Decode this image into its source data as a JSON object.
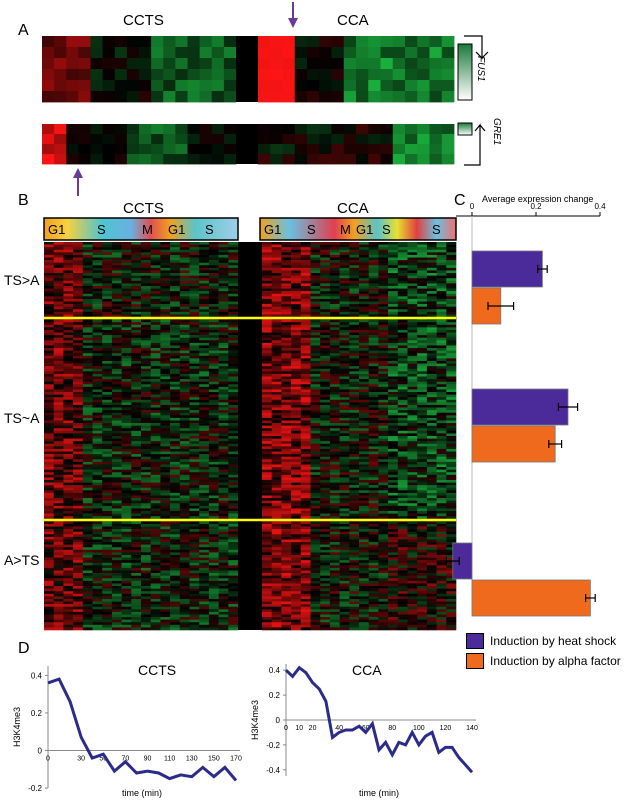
{
  "panels": {
    "a": "A",
    "b": "B",
    "c": "C",
    "d": "D"
  },
  "panel_a": {
    "left_title": "CCTS",
    "right_title": "CCA",
    "genes": [
      "FUS1",
      "GRE1"
    ]
  },
  "panel_b": {
    "left_title": "CCTS",
    "right_title": "CCA",
    "left_phases": [
      "G1",
      "S",
      "M",
      "G1",
      "S"
    ],
    "right_phases": [
      "G1",
      "S",
      "M",
      "G1",
      "S",
      "S"
    ],
    "groups": [
      "TS>A",
      "TS~A",
      "A>TS"
    ]
  },
  "colors": {
    "heat_shock": "#4b2a9a",
    "alpha_factor": "#f06a1e",
    "up": "#ff2020",
    "down": "#22cc55",
    "separator": "#ffff00",
    "line": "#2b2b8c"
  },
  "chart_data": [
    {
      "type": "bar",
      "orientation": "horizontal",
      "title": "Average expression change",
      "categories": [
        "TS>A",
        "TS~A",
        "A>TS"
      ],
      "series": [
        {
          "name": "Induction by heat shock",
          "values": [
            0.22,
            0.3,
            -0.06
          ],
          "errors": [
            0.015,
            0.03,
            0.02
          ]
        },
        {
          "name": "Induction by alpha factor",
          "values": [
            0.09,
            0.26,
            0.37
          ],
          "errors": [
            0.04,
            0.02,
            0.015
          ]
        }
      ],
      "xlim": [
        -0.1,
        0.4
      ],
      "ticks": [
        "0",
        "0.2",
        "0.4"
      ],
      "legend": [
        "Induction by heat shock",
        "Induction by alpha factor"
      ]
    },
    {
      "type": "line",
      "title": "CCTS",
      "xlabel": "time (min)",
      "ylabel": "H3K4me3",
      "xticks": [
        "0",
        "30",
        "50",
        "70",
        "90",
        "110",
        "130",
        "150",
        "170"
      ],
      "yticks": [
        "0.4",
        "0.2",
        "0",
        "-0.2"
      ],
      "ylim": [
        -0.2,
        0.45
      ],
      "x": [
        0,
        10,
        20,
        30,
        40,
        50,
        60,
        70,
        80,
        90,
        100,
        110,
        120,
        130,
        140,
        150,
        160,
        170
      ],
      "y": [
        0.36,
        0.38,
        0.26,
        0.07,
        -0.04,
        -0.02,
        -0.11,
        -0.06,
        -0.12,
        -0.11,
        -0.12,
        -0.15,
        -0.13,
        -0.14,
        -0.09,
        -0.14,
        -0.09,
        -0.16
      ]
    },
    {
      "type": "line",
      "title": "CCA",
      "xlabel": "time (min)",
      "ylabel": "H3K4me3",
      "xticks": [
        "0",
        "10",
        "20",
        "40",
        "60",
        "80",
        "100",
        "120",
        "140"
      ],
      "yticks": [
        "0.4",
        "0.2",
        "0",
        "-0.2",
        "-0.4"
      ],
      "ylim": [
        -0.45,
        0.45
      ],
      "x": [
        0,
        5,
        10,
        15,
        20,
        25,
        30,
        35,
        40,
        45,
        50,
        55,
        60,
        65,
        70,
        75,
        80,
        85,
        90,
        95,
        100,
        105,
        110,
        115,
        120,
        125,
        130,
        135,
        140
      ],
      "y": [
        0.4,
        0.35,
        0.42,
        0.38,
        0.3,
        0.25,
        0.15,
        -0.14,
        -0.1,
        -0.08,
        -0.08,
        -0.05,
        -0.1,
        -0.03,
        -0.24,
        -0.18,
        -0.28,
        -0.18,
        -0.2,
        -0.1,
        -0.2,
        -0.13,
        -0.1,
        -0.26,
        -0.22,
        -0.22,
        -0.3,
        -0.36,
        -0.42
      ]
    }
  ]
}
